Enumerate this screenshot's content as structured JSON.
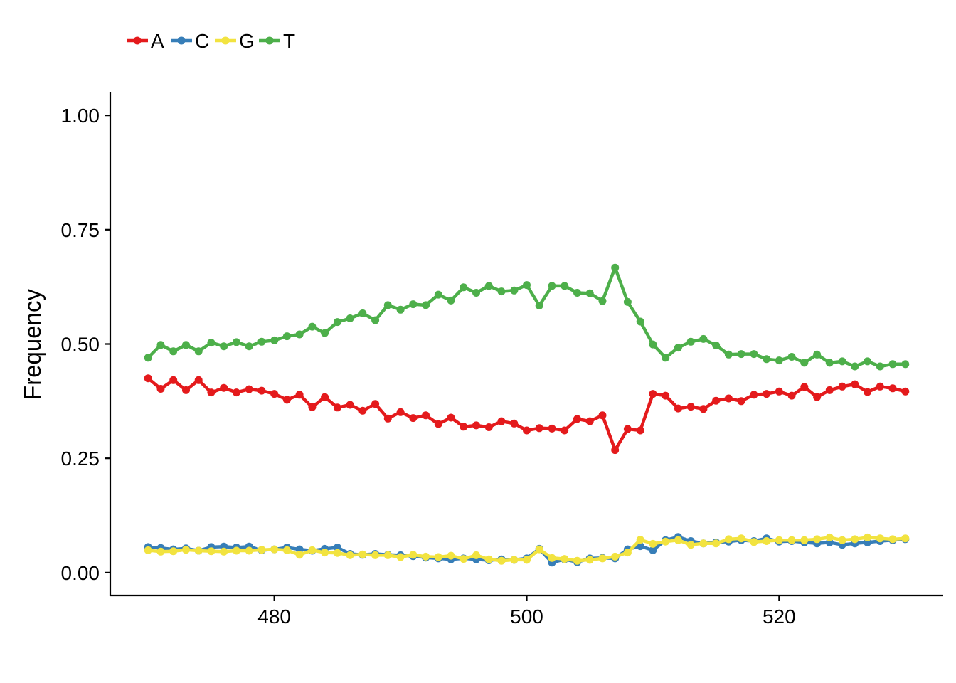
{
  "chart_data": {
    "type": "line",
    "title": "",
    "xlabel": "",
    "ylabel": "Frequency",
    "xlim": [
      467,
      533
    ],
    "ylim": [
      -0.05,
      1.05
    ],
    "x_ticks": [
      {
        "value": 480,
        "label": "480"
      },
      {
        "value": 500,
        "label": "500"
      },
      {
        "value": 520,
        "label": "520"
      }
    ],
    "y_ticks": [
      {
        "value": 0.0,
        "label": "0.00"
      },
      {
        "value": 0.25,
        "label": "0.25"
      },
      {
        "value": 0.5,
        "label": "0.50"
      },
      {
        "value": 0.75,
        "label": "0.75"
      },
      {
        "value": 1.0,
        "label": "1.00"
      }
    ],
    "grid": false,
    "legend_position": "top-left",
    "x_start": 470,
    "series": [
      {
        "name": "A",
        "color": "#E41A1C",
        "values": [
          0.425,
          0.402,
          0.421,
          0.399,
          0.421,
          0.394,
          0.404,
          0.394,
          0.401,
          0.398,
          0.391,
          0.378,
          0.389,
          0.362,
          0.384,
          0.361,
          0.367,
          0.354,
          0.369,
          0.337,
          0.351,
          0.338,
          0.344,
          0.325,
          0.339,
          0.319,
          0.322,
          0.318,
          0.331,
          0.326,
          0.311,
          0.316,
          0.315,
          0.311,
          0.336,
          0.331,
          0.344,
          0.268,
          0.314,
          0.311,
          0.391,
          0.387,
          0.359,
          0.363,
          0.358,
          0.376,
          0.381,
          0.375,
          0.389,
          0.391,
          0.396,
          0.387,
          0.406,
          0.384,
          0.399,
          0.407,
          0.412,
          0.395,
          0.407,
          0.403,
          0.396
        ]
      },
      {
        "name": "C",
        "color": "#377EB8",
        "values": [
          0.056,
          0.054,
          0.051,
          0.053,
          0.048,
          0.056,
          0.057,
          0.055,
          0.057,
          0.049,
          0.051,
          0.055,
          0.051,
          0.048,
          0.052,
          0.055,
          0.041,
          0.039,
          0.041,
          0.039,
          0.038,
          0.036,
          0.033,
          0.031,
          0.029,
          0.031,
          0.029,
          0.027,
          0.029,
          0.028,
          0.031,
          0.052,
          0.022,
          0.029,
          0.023,
          0.031,
          0.032,
          0.031,
          0.051,
          0.058,
          0.049,
          0.071,
          0.078,
          0.069,
          0.064,
          0.066,
          0.068,
          0.071,
          0.069,
          0.075,
          0.068,
          0.069,
          0.066,
          0.064,
          0.066,
          0.061,
          0.064,
          0.066,
          0.069,
          0.071,
          0.073
        ]
      },
      {
        "name": "G",
        "color": "#F2E340",
        "values": [
          0.049,
          0.046,
          0.047,
          0.05,
          0.048,
          0.047,
          0.046,
          0.048,
          0.048,
          0.05,
          0.051,
          0.049,
          0.039,
          0.049,
          0.044,
          0.043,
          0.038,
          0.04,
          0.038,
          0.038,
          0.034,
          0.039,
          0.035,
          0.034,
          0.037,
          0.03,
          0.038,
          0.029,
          0.026,
          0.028,
          0.028,
          0.051,
          0.032,
          0.03,
          0.026,
          0.028,
          0.031,
          0.035,
          0.044,
          0.072,
          0.063,
          0.068,
          0.071,
          0.061,
          0.064,
          0.064,
          0.073,
          0.075,
          0.067,
          0.069,
          0.071,
          0.071,
          0.071,
          0.073,
          0.077,
          0.071,
          0.073,
          0.077,
          0.075,
          0.073,
          0.075
        ]
      },
      {
        "name": "T",
        "color": "#4DAF4A",
        "values": [
          0.47,
          0.498,
          0.484,
          0.498,
          0.484,
          0.503,
          0.495,
          0.504,
          0.495,
          0.505,
          0.508,
          0.517,
          0.521,
          0.538,
          0.524,
          0.548,
          0.556,
          0.567,
          0.552,
          0.585,
          0.575,
          0.587,
          0.585,
          0.608,
          0.595,
          0.624,
          0.612,
          0.627,
          0.615,
          0.617,
          0.629,
          0.584,
          0.627,
          0.627,
          0.612,
          0.611,
          0.594,
          0.667,
          0.592,
          0.549,
          0.499,
          0.47,
          0.492,
          0.505,
          0.511,
          0.497,
          0.477,
          0.478,
          0.478,
          0.467,
          0.464,
          0.472,
          0.459,
          0.477,
          0.459,
          0.462,
          0.451,
          0.462,
          0.451,
          0.456,
          0.456
        ]
      }
    ]
  }
}
